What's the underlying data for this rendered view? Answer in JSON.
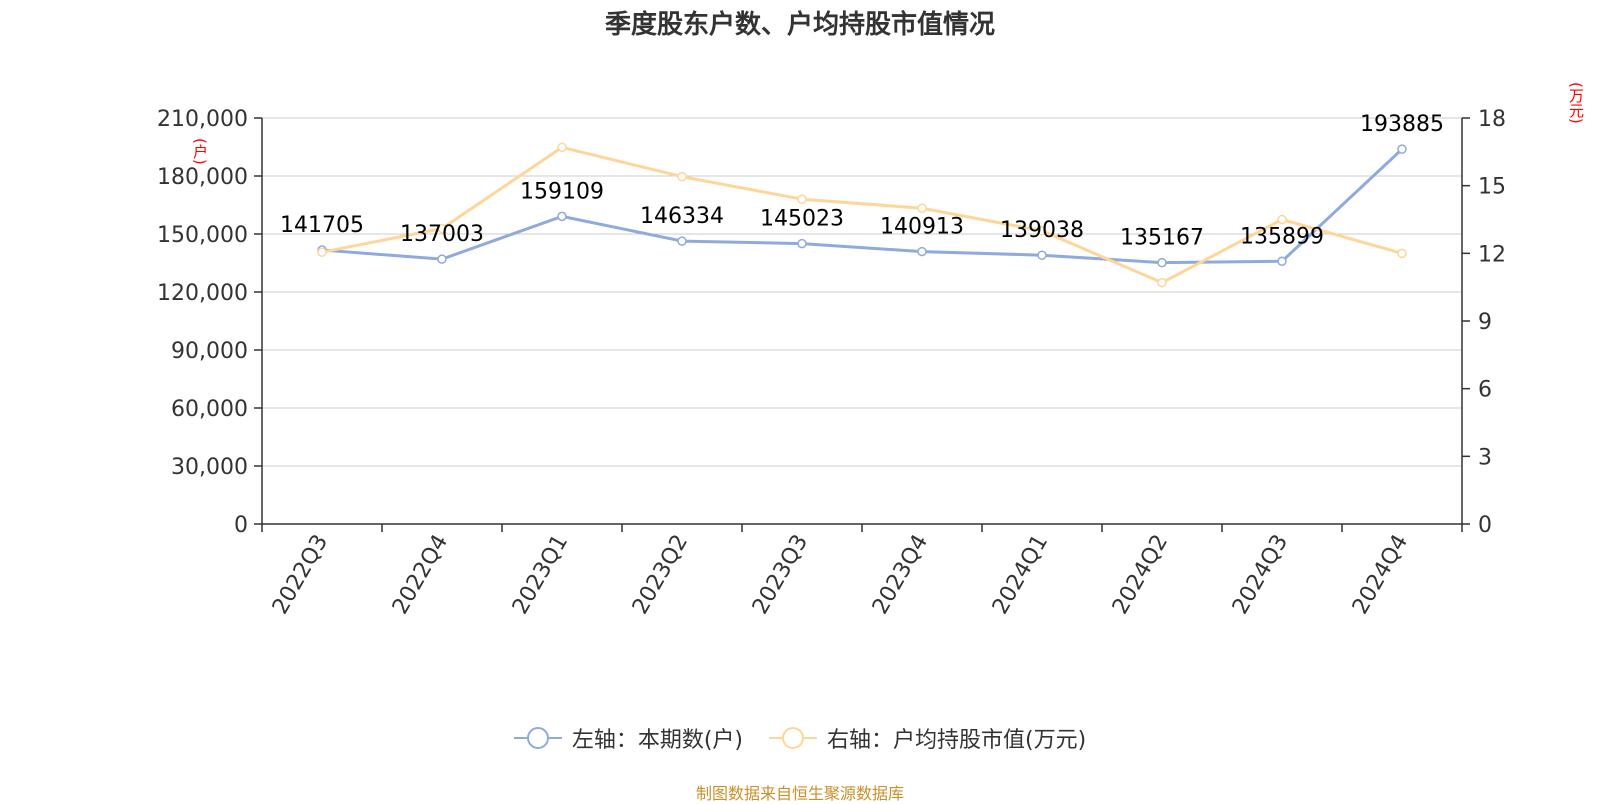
{
  "title": "季度股东户数、户均持股市值情况",
  "source": "制图数据来自恒生聚源数据库",
  "units": {
    "left": "(户)",
    "right": "(万元)"
  },
  "colors": {
    "series_left": "#8FAADC",
    "series_right": "#FFD699",
    "unit_text": "#FF0000",
    "source_text": "#C8902A",
    "axis": "#333333",
    "grid": "#CCCCCC"
  },
  "legend": [
    {
      "label": "左轴：本期数(户)",
      "icon": "circle-line-marker-blue"
    },
    {
      "label": "右轴：户均持股市值(万元)",
      "icon": "circle-line-marker-yellow"
    }
  ],
  "chart_data": {
    "type": "line",
    "categories": [
      "2022Q3",
      "2022Q4",
      "2023Q1",
      "2023Q2",
      "2023Q3",
      "2023Q4",
      "2024Q1",
      "2024Q2",
      "2024Q3",
      "2024Q4"
    ],
    "series": [
      {
        "name": "左轴：本期数(户)",
        "axis": "left",
        "values": [
          141705,
          137003,
          159109,
          146334,
          145023,
          140913,
          139038,
          135167,
          135899,
          193885
        ],
        "data_labels": [
          "141705",
          "137003",
          "159109",
          "146334",
          "145023",
          "140913",
          "139038",
          "135167",
          "135899",
          "193885"
        ]
      },
      {
        "name": "右轴：户均持股市值(万元)",
        "axis": "right",
        "values": [
          12.05,
          13.1,
          16.7,
          15.4,
          14.4,
          14.0,
          13.0,
          10.7,
          13.5,
          12.0
        ]
      }
    ],
    "y_left": {
      "min": 0,
      "max": 210000,
      "ticks": [
        "0",
        "30,000",
        "60,000",
        "90,000",
        "120,000",
        "150,000",
        "180,000",
        "210,000"
      ]
    },
    "y_right": {
      "min": 0,
      "max": 18,
      "ticks": [
        "0",
        "3",
        "6",
        "9",
        "12",
        "15",
        "18"
      ]
    },
    "grid": true,
    "legend_position": "bottom"
  }
}
